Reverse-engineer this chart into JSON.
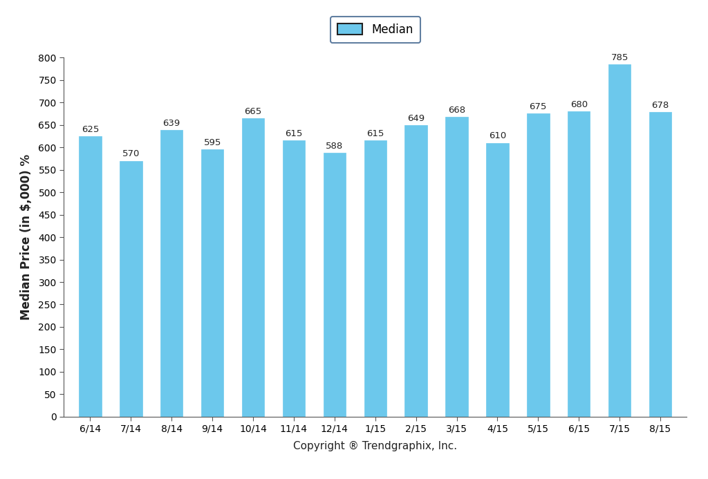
{
  "categories": [
    "6/14",
    "7/14",
    "8/14",
    "9/14",
    "10/14",
    "11/14",
    "12/14",
    "1/15",
    "2/15",
    "3/15",
    "4/15",
    "5/15",
    "6/15",
    "7/15",
    "8/15"
  ],
  "values": [
    625,
    570,
    639,
    595,
    665,
    615,
    588,
    615,
    649,
    668,
    610,
    675,
    680,
    785,
    678
  ],
  "bar_color": "#6CC8EC",
  "bar_edge_color": "#6CC8EC",
  "ylabel": "Median Price (in $,000) %",
  "xlabel": "Copyright ® Trendgraphix, Inc.",
  "ylim": [
    0,
    800
  ],
  "yticks": [
    0,
    50,
    100,
    150,
    200,
    250,
    300,
    350,
    400,
    450,
    500,
    550,
    600,
    650,
    700,
    750,
    800
  ],
  "legend_label": "Median",
  "legend_box_color": "#6CC8EC",
  "legend_box_edge_color": "#222222",
  "legend_frame_edge_color": "#3A5F8A",
  "background_color": "#ffffff",
  "bar_label_fontsize": 9.5,
  "ylabel_fontsize": 12,
  "tick_fontsize": 10,
  "xlabel_fontsize": 11,
  "legend_fontsize": 12,
  "bar_width": 0.55
}
